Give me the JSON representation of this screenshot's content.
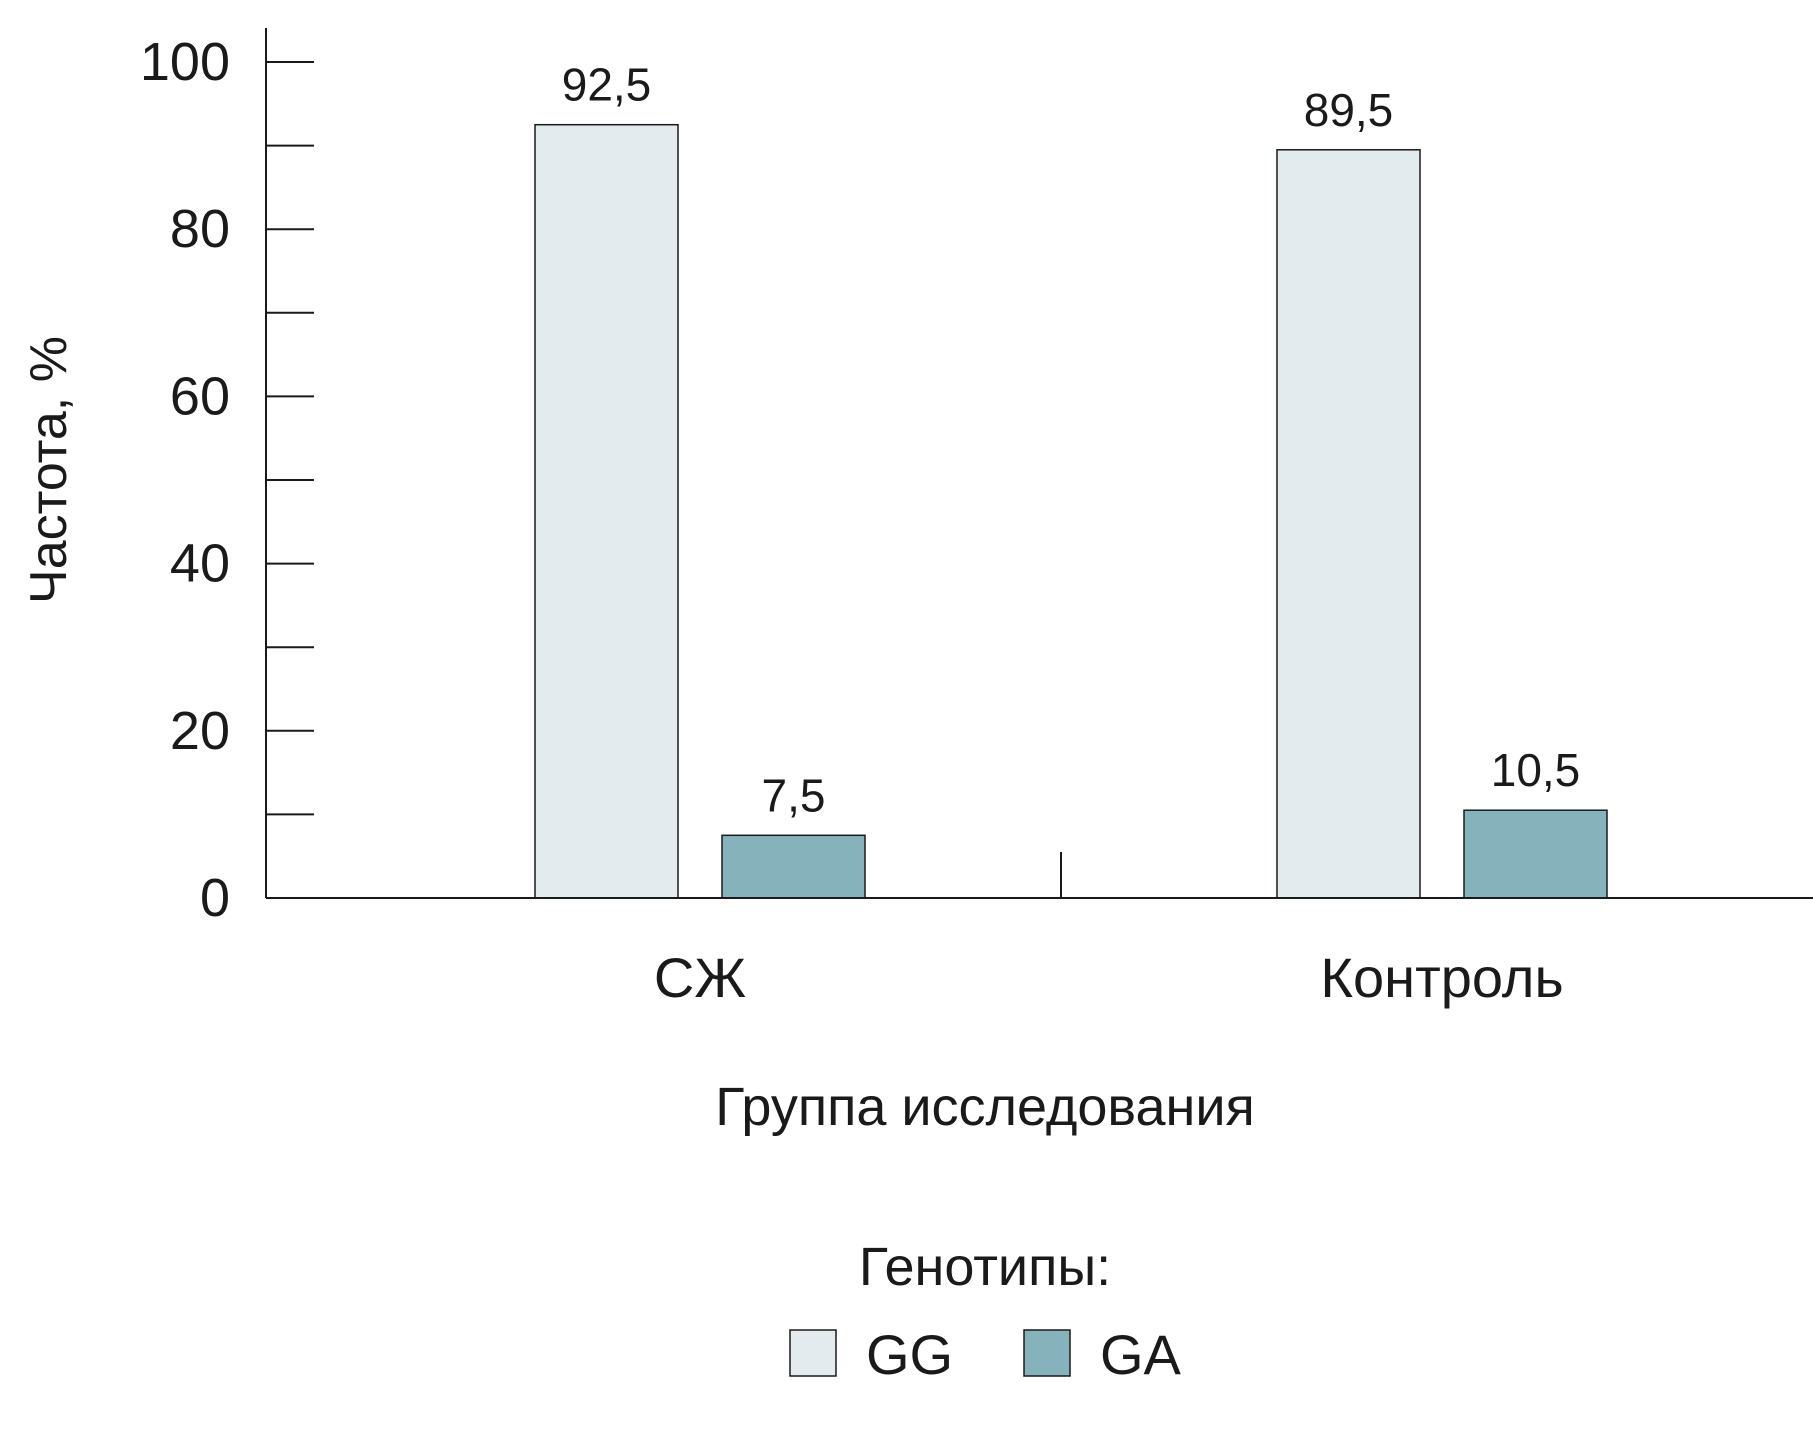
{
  "chart_data": {
    "type": "bar",
    "categories": [
      "СЖ",
      "Контроль"
    ],
    "series": [
      {
        "name": "GG",
        "values": [
          92.5,
          89.5
        ],
        "labels": [
          "92,5",
          "89,5"
        ],
        "color": "#e3ebee"
      },
      {
        "name": "GA",
        "values": [
          7.5,
          10.5
        ],
        "labels": [
          "7,5",
          "10,5"
        ],
        "color": "#86b2bc"
      }
    ],
    "ylabel": "Частота, %",
    "xlabel": "Группа исследования",
    "ylim": [
      0,
      100
    ],
    "yticks": [
      0,
      20,
      40,
      60,
      80,
      100
    ],
    "ytick_labels": [
      "0",
      "20",
      "40",
      "60",
      "80",
      "100"
    ],
    "legend_title": "Генотипы:",
    "legend_position": "bottom-center",
    "grid": false
  }
}
